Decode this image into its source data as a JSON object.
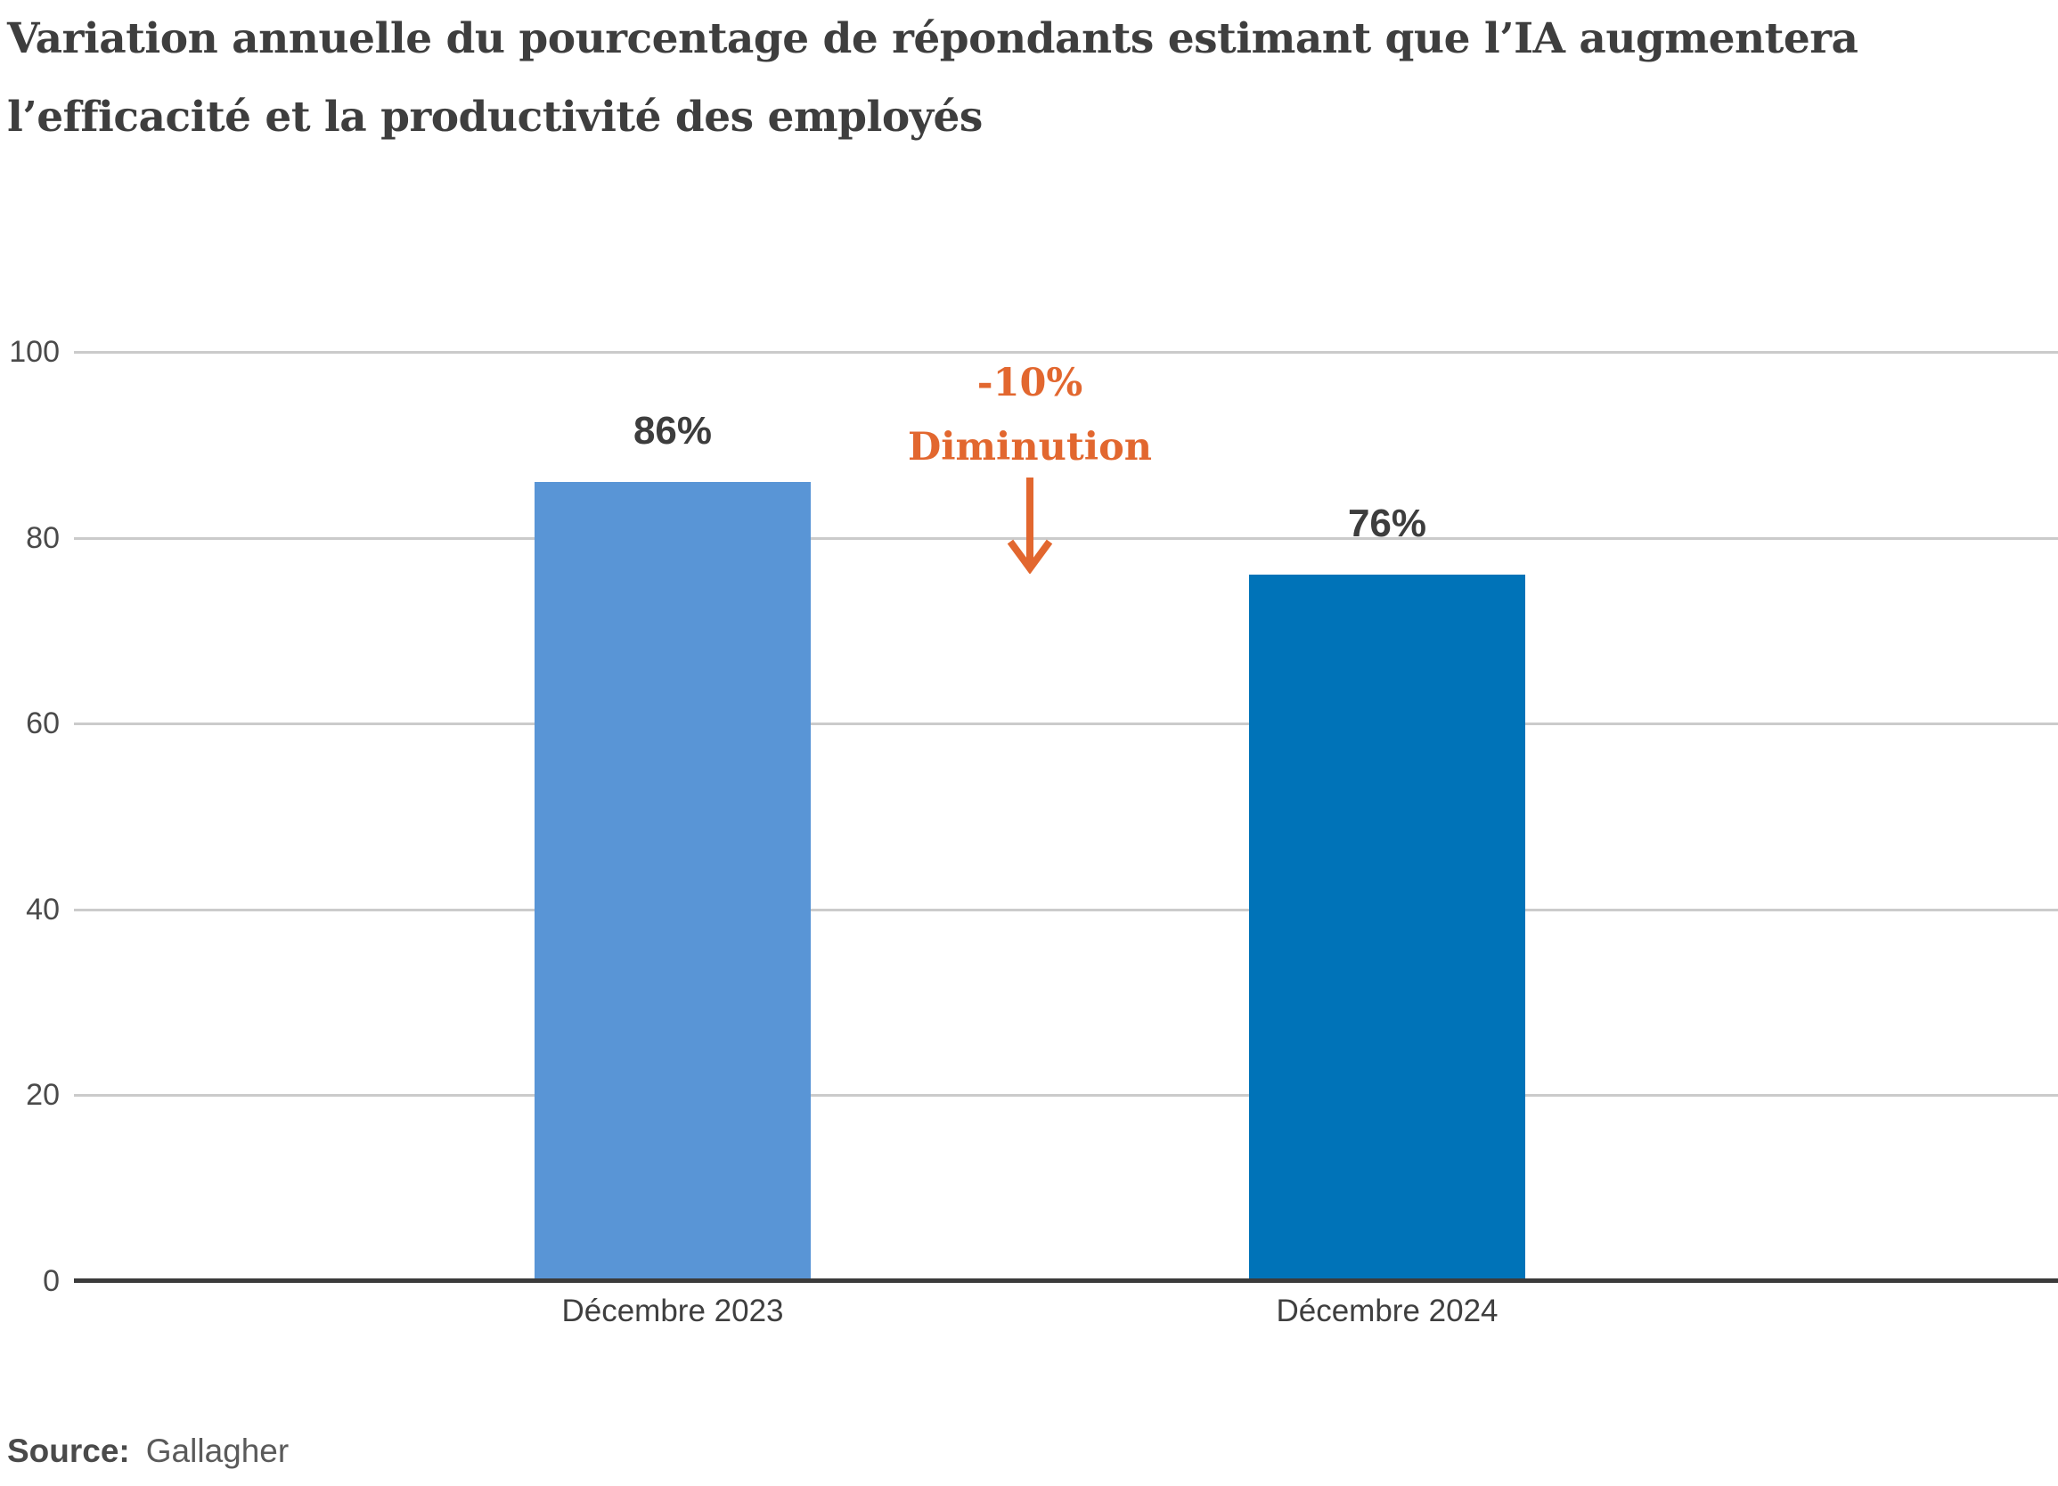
{
  "page": {
    "title_lines": [
      "Variation annuelle du pourcentage de répondants estimant que l’IA augmentera",
      "l’efficacité et la productivité des employés"
    ]
  },
  "chart_data": {
    "type": "bar",
    "title": "Variation annuelle du pourcentage de répondants estimant que l’IA augmentera l’efficacité et la productivité des employés",
    "categories": [
      "Décembre 2023",
      "Décembre 2024"
    ],
    "values": [
      86,
      76
    ],
    "value_labels": [
      "86%",
      "76%"
    ],
    "bar_colors": [
      "#5995D6",
      "#0073B8"
    ],
    "xlabel": "",
    "ylabel": "",
    "ylim": [
      0,
      100
    ],
    "yticks": [
      0,
      20,
      40,
      60,
      80,
      100
    ],
    "grid": true,
    "legend": false,
    "grid_color": "#CBCBCB",
    "axis_color": "#3B3B3B",
    "annotation": {
      "value": "-10%",
      "label": "Diminution",
      "color": "#E2672F",
      "arrow": "down"
    },
    "source": {
      "label": "Source:",
      "value": "Gallagher"
    }
  }
}
